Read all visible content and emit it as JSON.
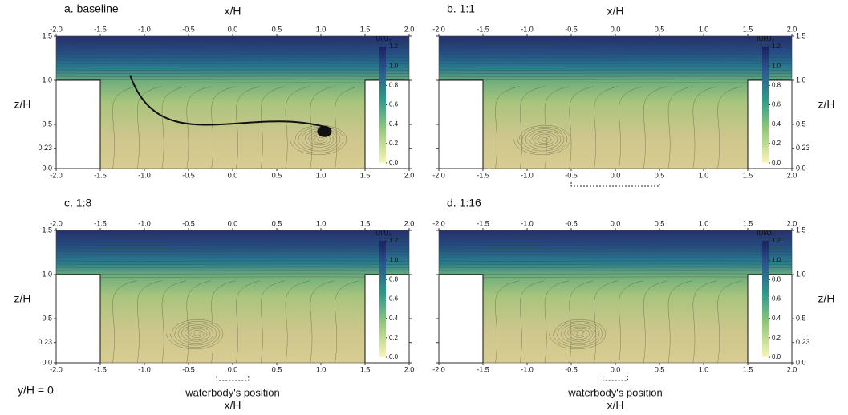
{
  "chart_data": [
    {
      "type": "field",
      "title": "a. baseline",
      "xlabel": "x/H",
      "ylabel": "z/H",
      "xlim": [
        -2.0,
        2.0
      ],
      "ylim": [
        0.0,
        1.5
      ],
      "xticks": [
        {
          "value": -2.0,
          "label": "-2.0"
        },
        -1.5,
        {
          "value": -1.0,
          "label": "-1.0"
        },
        -0.5,
        {
          "value": 0.0,
          "label": "0.0"
        },
        0.5,
        {
          "value": 1.0,
          "label": "1.0"
        },
        1.5,
        {
          "value": 2.0,
          "label": "2.0"
        }
      ],
      "yticks": [
        {
          "value": 0.0,
          "label": "0.0"
        },
        0.23,
        0.5,
        {
          "value": 1.0,
          "label": "1.0"
        },
        1.5
      ],
      "buildings": [
        [
          -2.0,
          -1.5,
          1.0
        ],
        [
          1.5,
          2.0,
          1.0
        ]
      ],
      "colorbar": {
        "label": "IUI/U₀",
        "lim": [
          0.0,
          1.2
        ],
        "ticks": [
          {
            "value": 0.0,
            "label": "0.0"
          },
          0.2,
          0.4,
          0.6,
          0.8,
          {
            "value": 1.0,
            "label": "1.0"
          },
          1.2
        ]
      }
    },
    {
      "type": "field",
      "title": "b. 1:1",
      "xlabel": "x/H",
      "ylabel": "z/H",
      "xlim": [
        -2.0,
        2.0
      ],
      "ylim": [
        0.0,
        1.5
      ],
      "xticks": [
        {
          "value": -2.0,
          "label": "-2.0"
        },
        -1.5,
        {
          "value": -1.0,
          "label": "-1.0"
        },
        -0.5,
        {
          "value": 0.0,
          "label": "0.0"
        },
        0.5,
        {
          "value": 1.0,
          "label": "1.0"
        },
        1.5,
        {
          "value": 2.0,
          "label": "2.0"
        }
      ],
      "yticks": [
        {
          "value": 0.0,
          "label": "0.0"
        },
        0.23,
        0.5,
        {
          "value": 1.0,
          "label": "1.0"
        },
        1.5
      ],
      "buildings": [
        [
          -2.0,
          -1.5,
          1.0
        ],
        [
          1.5,
          2.0,
          1.0
        ]
      ],
      "waterbody_x": [
        -0.5,
        0.5
      ],
      "colorbar": {
        "label": "IUI/U₀",
        "lim": [
          0.0,
          1.2
        ],
        "ticks": [
          {
            "value": 0.0,
            "label": "0.0"
          },
          0.2,
          0.4,
          0.6,
          0.8,
          {
            "value": 1.0,
            "label": "1.0"
          },
          1.2
        ]
      }
    },
    {
      "type": "field",
      "title": "c. 1:8",
      "xlabel": "x/H",
      "ylabel": "z/H",
      "xlim": [
        -2.0,
        2.0
      ],
      "ylim": [
        0.0,
        1.5
      ],
      "xticks": [
        {
          "value": -2.0,
          "label": "-2.0"
        },
        -1.5,
        {
          "value": -1.0,
          "label": "-1.0"
        },
        -0.5,
        {
          "value": 0.0,
          "label": "0.0"
        },
        0.5,
        {
          "value": 1.0,
          "label": "1.0"
        },
        1.5,
        {
          "value": 2.0,
          "label": "2.0"
        }
      ],
      "yticks": [
        {
          "value": 0.0,
          "label": "0.0"
        },
        0.23,
        0.5,
        {
          "value": 1.0,
          "label": "1.0"
        },
        1.5
      ],
      "buildings": [
        [
          -2.0,
          -1.5,
          1.0
        ],
        [
          1.5,
          2.0,
          1.0
        ]
      ],
      "waterbody_x": [
        -0.18,
        0.18
      ],
      "waterbody_label": "waterbody's position",
      "note": "y/H = 0",
      "colorbar": {
        "label": "IUI/U₀",
        "lim": [
          0.0,
          1.2
        ],
        "ticks": [
          {
            "value": 0.0,
            "label": "0.0"
          },
          0.2,
          0.4,
          0.6,
          0.8,
          {
            "value": 1.0,
            "label": "1.0"
          },
          1.2
        ]
      }
    },
    {
      "type": "field",
      "title": "d. 1:16",
      "xlabel": "x/H",
      "ylabel": "z/H",
      "xlim": [
        -2.0,
        2.0
      ],
      "ylim": [
        0.0,
        1.5
      ],
      "xticks": [
        {
          "value": -2.0,
          "label": "-2.0"
        },
        -1.5,
        {
          "value": -1.0,
          "label": "-1.0"
        },
        -0.5,
        {
          "value": 0.0,
          "label": "0.0"
        },
        0.5,
        {
          "value": 1.0,
          "label": "1.0"
        },
        1.5,
        {
          "value": 2.0,
          "label": "2.0"
        }
      ],
      "yticks": [
        {
          "value": 0.0,
          "label": "0.0"
        },
        0.23,
        0.5,
        {
          "value": 1.0,
          "label": "1.0"
        },
        1.5
      ],
      "buildings": [
        [
          -2.0,
          -1.5,
          1.0
        ],
        [
          1.5,
          2.0,
          1.0
        ]
      ],
      "waterbody_x": [
        -0.14,
        0.14
      ],
      "waterbody_label": "waterbody's position",
      "colorbar": {
        "label": "IUI/U₀",
        "lim": [
          0.0,
          1.2
        ],
        "ticks": [
          {
            "value": 0.0,
            "label": "0.0"
          },
          0.2,
          0.4,
          0.6,
          0.8,
          {
            "value": 1.0,
            "label": "1.0"
          },
          1.2
        ]
      }
    }
  ]
}
